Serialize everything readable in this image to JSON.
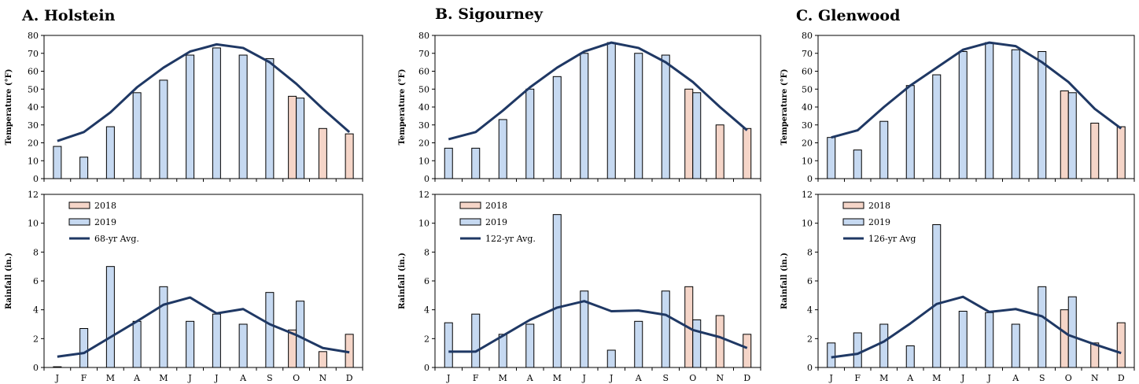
{
  "colors": {
    "y2018": "#f5d5c8",
    "y2019": "#c6d9f1",
    "avg": "#1f3864",
    "bar_edge": "#000000"
  },
  "chart_data": [
    {
      "panel": "A. Holstein",
      "type": "bar+line",
      "title": "A. Holstein",
      "categories": [
        "J",
        "F",
        "M",
        "A",
        "M",
        "J",
        "J",
        "A",
        "S",
        "O",
        "N",
        "D"
      ],
      "temperature": {
        "ylabel": "Temperature (°F)",
        "ylim": [
          0,
          80
        ],
        "yticks": [
          0,
          10,
          20,
          30,
          40,
          50,
          60,
          70,
          80
        ],
        "series": [
          {
            "name": "2018",
            "values": [
              null,
              null,
              null,
              null,
              null,
              null,
              null,
              null,
              null,
              46,
              28,
              25
            ]
          },
          {
            "name": "2019",
            "values": [
              18,
              12,
              29,
              48,
              55,
              69,
              73,
              69,
              67,
              45,
              null,
              null
            ]
          },
          {
            "values": [
              21,
              26,
              37,
              51,
              62,
              71,
              75,
              73,
              65,
              53,
              39,
              26
            ]
          }
        ]
      },
      "rainfall": {
        "ylabel": "Rainfall (in.)",
        "ylim": [
          0,
          12
        ],
        "yticks": [
          0,
          2,
          4,
          6,
          8,
          10,
          12
        ],
        "legend": [
          "2018",
          "2019",
          "68-yr Avg."
        ],
        "series": [
          {
            "name": "2018",
            "values": [
              0.05,
              null,
              null,
              null,
              null,
              null,
              null,
              null,
              null,
              2.6,
              1.1,
              2.3
            ]
          },
          {
            "name": "2019",
            "values": [
              null,
              2.7,
              7.0,
              3.2,
              5.6,
              3.2,
              3.7,
              3.0,
              5.2,
              4.6,
              null,
              null
            ]
          },
          {
            "name": "68-yr Avg.",
            "values": [
              0.75,
              1.0,
              2.1,
              3.2,
              4.35,
              4.85,
              3.75,
              4.05,
              3.0,
              2.25,
              1.35,
              1.05
            ]
          }
        ]
      }
    },
    {
      "panel": "B. Sigourney",
      "type": "bar+line",
      "title": "B. Sigourney",
      "categories": [
        "J",
        "F",
        "M",
        "A",
        "M",
        "J",
        "J",
        "A",
        "S",
        "O",
        "N",
        "D"
      ],
      "temperature": {
        "ylabel": "Temperature (°F)",
        "ylim": [
          0,
          80
        ],
        "yticks": [
          0,
          10,
          20,
          30,
          40,
          50,
          60,
          70,
          80
        ],
        "series": [
          {
            "name": "2018",
            "values": [
              null,
              null,
              null,
              null,
              null,
              null,
              null,
              null,
              null,
              50,
              30,
              28
            ]
          },
          {
            "name": "2019",
            "values": [
              17,
              17,
              33,
              50,
              57,
              70,
              76,
              70,
              69,
              48,
              null,
              null
            ]
          },
          {
            "values": [
              22,
              26,
              38,
              51,
              62,
              71,
              76,
              73,
              65,
              54,
              40,
              27
            ]
          }
        ]
      },
      "rainfall": {
        "ylabel": "Rainfall (in.)",
        "ylim": [
          0,
          12
        ],
        "yticks": [
          0,
          2,
          4,
          6,
          8,
          10,
          12
        ],
        "legend": [
          "2018",
          "2019",
          "122-yr Avg."
        ],
        "series": [
          {
            "name": "2018",
            "values": [
              null,
              null,
              null,
              null,
              null,
              null,
              null,
              null,
              null,
              5.6,
              3.6,
              2.3
            ]
          },
          {
            "name": "2019",
            "values": [
              3.1,
              3.7,
              2.3,
              3.0,
              10.6,
              5.3,
              1.2,
              3.2,
              5.3,
              3.3,
              null,
              null
            ]
          },
          {
            "name": "122-yr Avg.",
            "values": [
              1.1,
              1.1,
              2.2,
              3.3,
              4.15,
              4.6,
              3.9,
              3.95,
              3.65,
              2.6,
              2.1,
              1.35
            ]
          }
        ]
      }
    },
    {
      "panel": "C. Glenwood",
      "type": "bar+line",
      "title": "C. Glenwood",
      "categories": [
        "J",
        "F",
        "M",
        "A",
        "M",
        "J",
        "J",
        "A",
        "S",
        "O",
        "N",
        "D"
      ],
      "temperature": {
        "ylabel": "Temperature (°F)",
        "ylim": [
          0,
          80
        ],
        "yticks": [
          0,
          10,
          20,
          30,
          40,
          50,
          60,
          70,
          80
        ],
        "series": [
          {
            "name": "2018",
            "values": [
              null,
              null,
              null,
              null,
              null,
              null,
              null,
              null,
              null,
              49,
              31,
              29
            ]
          },
          {
            "name": "2019",
            "values": [
              23,
              16,
              32,
              52,
              58,
              71,
              76,
              72,
              71,
              48,
              null,
              null
            ]
          },
          {
            "values": [
              23,
              27,
              40,
              52,
              62,
              72,
              76,
              74,
              65,
              54,
              39,
              28
            ]
          }
        ]
      },
      "rainfall": {
        "ylabel": "Rainfall (in.)",
        "ylim": [
          0,
          12
        ],
        "yticks": [
          0,
          2,
          4,
          6,
          8,
          10,
          12
        ],
        "legend": [
          "2018",
          "2019",
          "126-yr Avg"
        ],
        "series": [
          {
            "name": "2018",
            "values": [
              null,
              null,
              null,
              null,
              null,
              null,
              null,
              null,
              null,
              4.0,
              1.7,
              3.1
            ]
          },
          {
            "name": "2019",
            "values": [
              1.7,
              2.4,
              3.0,
              1.5,
              9.9,
              3.9,
              3.8,
              3.0,
              5.6,
              4.9,
              null,
              null
            ]
          },
          {
            "name": "126-yr Avg",
            "values": [
              0.7,
              0.95,
              1.8,
              3.05,
              4.4,
              4.9,
              3.85,
              4.05,
              3.55,
              2.25,
              1.6,
              1.0
            ]
          }
        ]
      }
    }
  ]
}
